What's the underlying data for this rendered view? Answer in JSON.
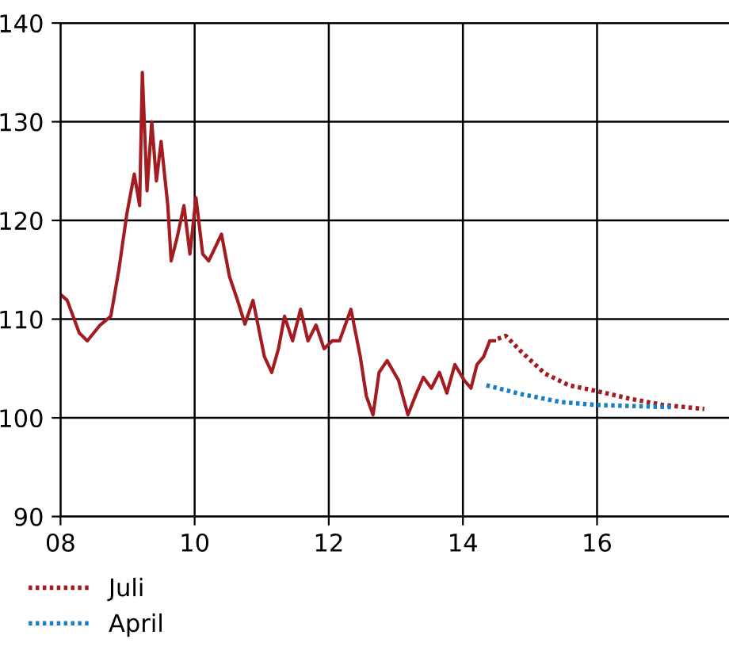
{
  "chart_data": {
    "type": "line",
    "xlim": [
      8,
      18
    ],
    "xticks": [
      {
        "value": 8,
        "label": "08"
      },
      {
        "value": 10,
        "label": "10"
      },
      {
        "value": 12,
        "label": "12"
      },
      {
        "value": 14,
        "label": "14"
      },
      {
        "value": 16,
        "label": "16"
      }
    ],
    "ylim": [
      90,
      140
    ],
    "yticks": [
      90,
      100,
      110,
      120,
      130,
      140
    ],
    "grid": true,
    "legend": "bottom",
    "series": [
      {
        "color": "#a31c22",
        "line_style": "solid",
        "x": [
          8.0,
          8.1,
          8.28,
          8.4,
          8.59,
          8.75,
          8.87,
          8.99,
          9.1,
          9.18,
          9.22,
          9.29,
          9.36,
          9.43,
          9.5,
          9.6,
          9.65,
          9.74,
          9.84,
          9.93,
          10.02,
          10.12,
          10.21,
          10.4,
          10.52,
          10.64,
          10.75,
          10.87,
          11.04,
          11.15,
          11.25,
          11.34,
          11.46,
          11.58,
          11.69,
          11.81,
          11.93,
          12.05,
          12.16,
          12.33,
          12.47,
          12.56,
          12.66,
          12.75,
          12.87,
          13.04,
          13.18,
          13.29,
          13.41,
          13.53,
          13.65,
          13.76,
          13.88,
          14.02,
          14.12,
          14.21,
          14.31,
          14.4,
          14.47
        ],
        "values": [
          112.5,
          111.9,
          108.6,
          107.8,
          109.4,
          110.3,
          115,
          120.7,
          124.7,
          121.5,
          135,
          123,
          130,
          124,
          128,
          121.5,
          115.9,
          118.3,
          121.5,
          116.6,
          122.3,
          116.6,
          115.9,
          118.6,
          114.3,
          111.9,
          109.5,
          111.9,
          106.2,
          104.6,
          107,
          110.3,
          107.8,
          111,
          107.8,
          109.4,
          107,
          107.8,
          107.8,
          111,
          106.2,
          102.2,
          100.3,
          104.6,
          105.8,
          103.8,
          100.3,
          102.2,
          104.1,
          103,
          104.6,
          102.5,
          105.4,
          103.8,
          103,
          105.4,
          106.2,
          107.8,
          107.8
        ]
      },
      {
        "name": "Juli",
        "color": "#a31c22",
        "line_style": "dotted",
        "x": [
          14.52,
          14.64,
          14.87,
          15.22,
          15.58,
          16.0,
          16.52,
          16.99,
          17.6
        ],
        "values": [
          108,
          108.3,
          106.7,
          104.5,
          103.3,
          102.7,
          101.9,
          101.3,
          100.9
        ]
      },
      {
        "name": "April",
        "color": "#1a7fc4",
        "line_style": "dotted",
        "x": [
          14.35,
          14.87,
          15.46,
          16.0,
          16.99,
          17.1
        ],
        "values": [
          103.3,
          102.4,
          101.6,
          101.3,
          101.1,
          101.1
        ]
      }
    ]
  }
}
